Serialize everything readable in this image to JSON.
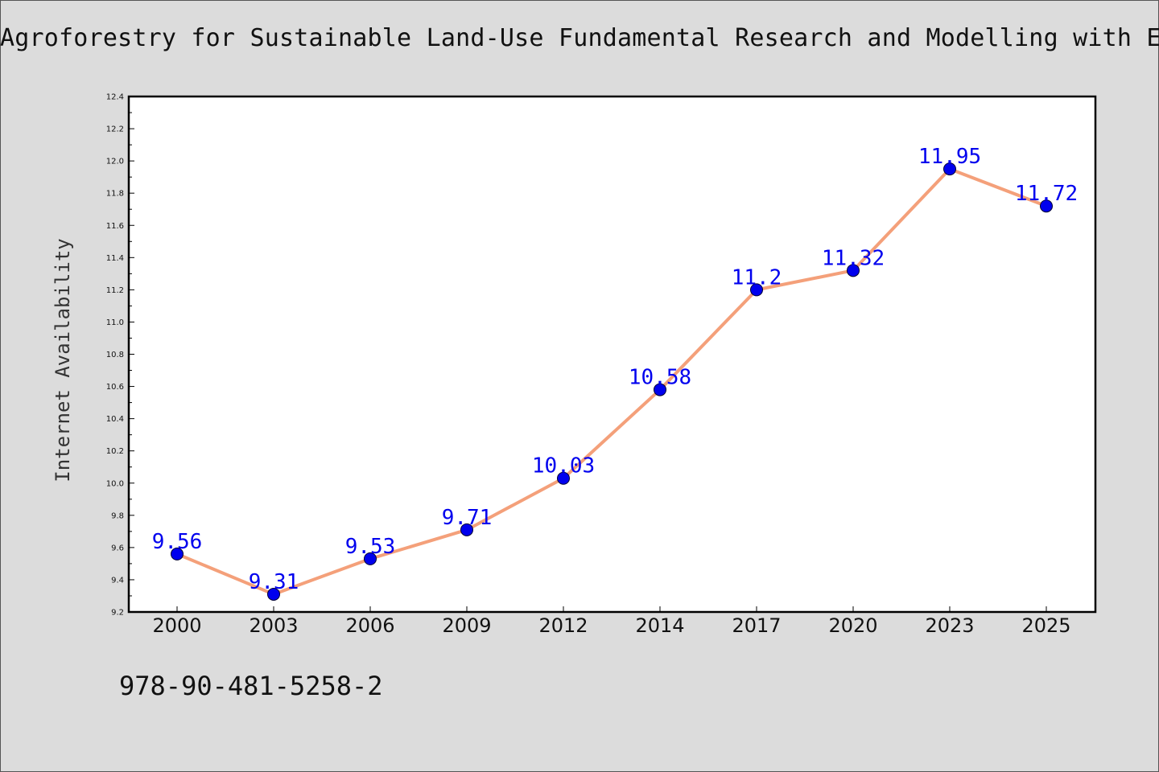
{
  "title": "Agroforestry for Sustainable Land-Use Fundamental Research and Modelling with Em",
  "footer": "978-90-481-5258-2",
  "colors": {
    "background": "#dcdcdc",
    "plot_background": "#ffffff",
    "line": "#f4a07a",
    "marker": "#0000ee",
    "data_label": "#0000ee"
  },
  "chart_data": {
    "type": "line",
    "title": "Agroforestry for Sustainable Land-Use Fundamental Research and Modelling with Em",
    "xlabel": "",
    "ylabel": "Internet Availability",
    "categories": [
      "2000",
      "2003",
      "2006",
      "2009",
      "2012",
      "2014",
      "2017",
      "2020",
      "2023",
      "2025"
    ],
    "series": [
      {
        "values": [
          9.56,
          9.31,
          9.53,
          9.71,
          10.03,
          10.58,
          11.2,
          11.32,
          11.95,
          11.72
        ],
        "labels": [
          "9.56",
          "9.31",
          "9.53",
          "9.71",
          "10.03",
          "10.58",
          "11.2",
          "11.32",
          "11.95",
          "11.72"
        ]
      }
    ],
    "ylim": [
      9.2,
      12.4
    ],
    "yticks": [
      "9.2",
      "9.4",
      "9.6",
      "9.8",
      "10.0",
      "10.2",
      "10.4",
      "10.6",
      "10.8",
      "11.0",
      "11.2",
      "11.4",
      "11.6",
      "11.8",
      "12.0",
      "12.2",
      "12.4"
    ],
    "grid": false,
    "legend": "none"
  }
}
